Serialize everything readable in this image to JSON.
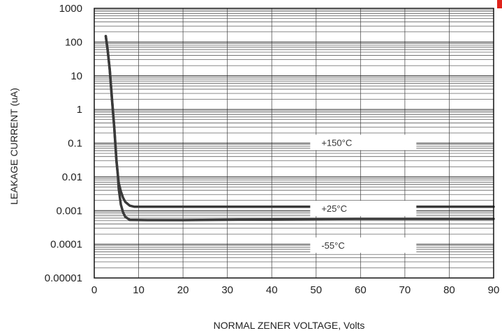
{
  "chart_data": {
    "type": "line",
    "title": "",
    "xlabel": "NORMAL ZENER VOLTAGE, Volts",
    "ylabel": "LEAKAGE CURRENT (uA)",
    "xlim": [
      0,
      90
    ],
    "ylim": [
      1e-05,
      1000
    ],
    "y_scale": "log",
    "grid": true,
    "x_ticks": [
      "0",
      "10",
      "20",
      "30",
      "40",
      "50",
      "60",
      "70",
      "80",
      "90"
    ],
    "y_ticks": [
      "0.00001",
      "0.0001",
      "0.001",
      "0.01",
      "0.1",
      "1",
      "10",
      "100",
      "1000"
    ],
    "series": [
      {
        "name": "+150°C",
        "x": [
          2.6,
          3.0,
          3.5,
          4.0,
          4.5,
          5.0,
          5.3,
          5.5,
          6.0,
          6.5,
          7.0,
          8.0,
          9.0,
          12,
          20,
          40,
          60,
          80,
          90
        ],
        "y": [
          150,
          60,
          15,
          2,
          0.3,
          0.03,
          0.012,
          0.0067,
          0.0037,
          0.0024,
          0.0018,
          0.0014,
          0.0013,
          0.0013,
          0.0013,
          0.0013,
          0.0013,
          0.0013,
          0.0013
        ]
      },
      {
        "name": "+25°C",
        "x": [
          2.6,
          3.0,
          3.5,
          4.0,
          4.5,
          5.0,
          5.3,
          5.5,
          6.0,
          6.5,
          7.0,
          8.0,
          12,
          20,
          40,
          60,
          80,
          90
        ],
        "y": [
          150,
          60,
          15,
          2,
          0.3,
          0.03,
          0.012,
          0.0045,
          0.0015,
          0.00088,
          0.00065,
          0.00053,
          0.00052,
          0.00052,
          0.00055,
          0.00057,
          0.00057,
          0.00057
        ]
      },
      {
        "name": "-55°C",
        "x": [],
        "y": []
      }
    ],
    "annotations": [
      {
        "text": "+150",
        "unit": "°C",
        "x": 60,
        "y": 0.1
      },
      {
        "text": "+25",
        "unit": "°C",
        "x": 60,
        "y": 0.0011
      },
      {
        "text": "-55",
        "unit": "°C",
        "x": 60,
        "y": 9e-05
      }
    ]
  }
}
